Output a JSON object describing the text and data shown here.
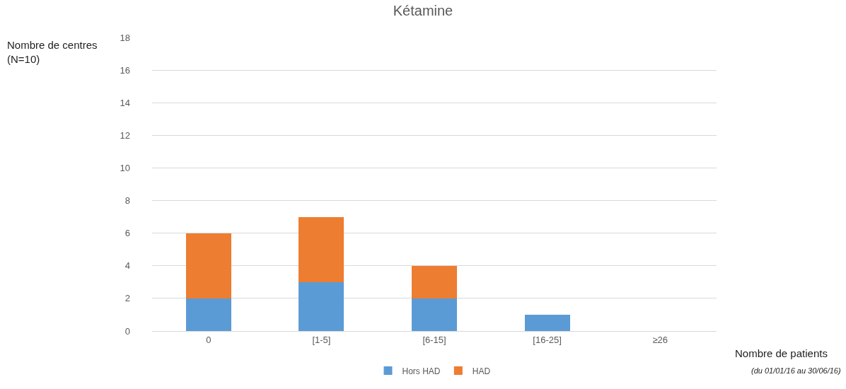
{
  "chart_data": {
    "type": "bar",
    "title": "Kétamine",
    "ylabel": "Nombre de centres\n(N=10)",
    "xlabel": "Nombre de patients",
    "annotations": [
      "(du 01/01/16 au 30/06/16)"
    ],
    "categories": [
      "0",
      "[1-5]",
      "[6-15]",
      "[16-25]",
      "≥26"
    ],
    "stacked": true,
    "series": [
      {
        "name": "Hors HAD",
        "color": "#5b9bd5",
        "values": [
          2,
          3,
          2,
          1,
          0
        ]
      },
      {
        "name": "HAD",
        "color": "#ed7d31",
        "values": [
          4,
          4,
          2,
          0,
          0
        ]
      }
    ],
    "ylim": [
      0,
      18
    ],
    "yticks": [
      0,
      2,
      4,
      6,
      8,
      10,
      12,
      14,
      16,
      18
    ],
    "grid": "y",
    "legend": "bottom"
  }
}
